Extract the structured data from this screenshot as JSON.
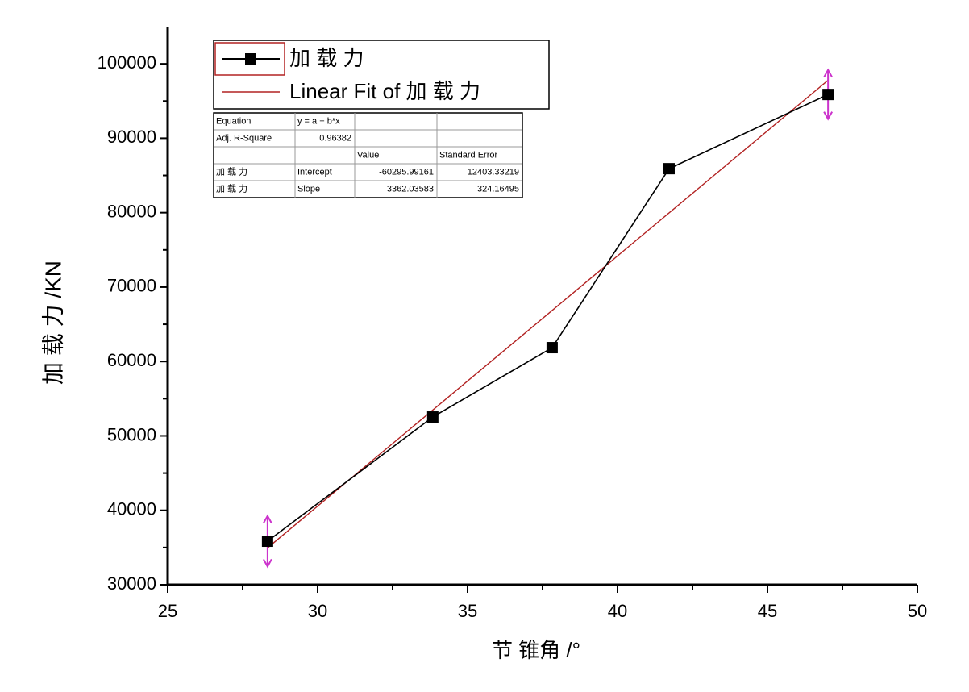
{
  "chart_data": {
    "type": "line",
    "x_label": "节 锥角 /°",
    "y_label": "加 载 力 /KN",
    "xlim": [
      25,
      50
    ],
    "xticks": [
      25,
      30,
      35,
      40,
      45,
      50
    ],
    "x_minor_ticks": [
      27.5,
      32.5,
      37.5,
      42.5,
      47.5
    ],
    "ylim": [
      30000,
      105000
    ],
    "yticks": [
      30000,
      40000,
      50000,
      60000,
      70000,
      80000,
      90000,
      100000
    ],
    "y_minor_ticks": [
      35000,
      45000,
      55000,
      65000,
      75000,
      85000,
      95000
    ],
    "legend": "upper left",
    "series": [
      {
        "name": "加 载 力",
        "color": "#000000",
        "marker": "square",
        "x": [
          28.33,
          33.84,
          37.82,
          41.72,
          47.02
        ],
        "values": [
          35850,
          52540,
          61860,
          85910,
          95880
        ],
        "errors": [
          3400,
          null,
          null,
          null,
          3300
        ],
        "error_color": "#cc33cc"
      },
      {
        "name": "Linear Fit of 加 载 力",
        "color": "#b22222",
        "x": [
          28.33,
          47.02
        ],
        "values": [
          34950,
          97790
        ]
      }
    ],
    "fit_table": {
      "rows": [
        [
          "Equation",
          "y = a + b*x",
          null,
          null
        ],
        [
          "Adj. R-Square",
          "0.96382",
          null,
          null
        ],
        [
          null,
          null,
          "Value",
          "Standard Error"
        ],
        [
          "加 载 力",
          "Intercept",
          "-60295.99161",
          "12403.33219"
        ],
        [
          "加 载 力",
          "Slope",
          "3362.03583",
          "324.16495"
        ]
      ]
    }
  }
}
